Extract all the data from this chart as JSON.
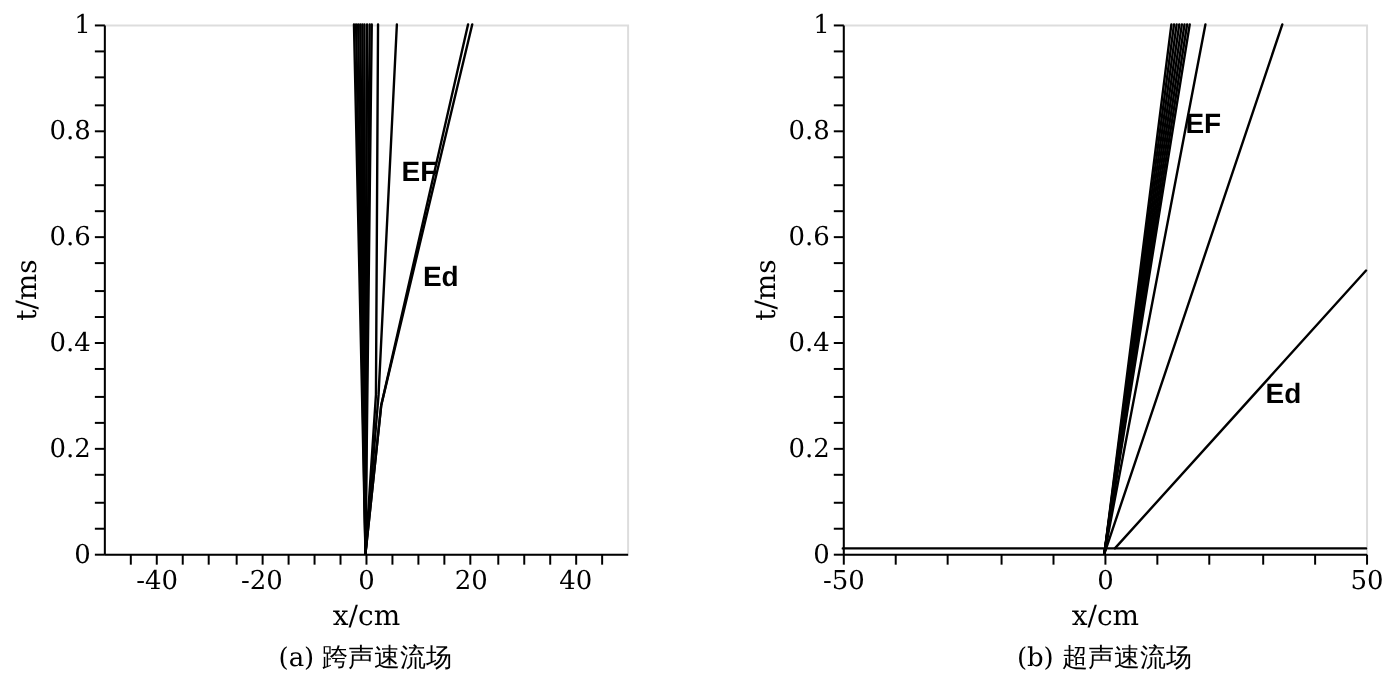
{
  "chart_data": [
    {
      "type": "line",
      "title": "(a) 跨声速流场",
      "xlabel": "x/cm",
      "ylabel": "t/ms",
      "grid": false,
      "xlim": [
        -50,
        50
      ],
      "ylim": [
        0,
        1
      ],
      "xticks": [
        {
          "value": -45,
          "label": null
        },
        -40,
        {
          "value": -35,
          "label": null
        },
        {
          "value": -30,
          "label": null
        },
        {
          "value": -25,
          "label": null
        },
        -20,
        {
          "value": -15,
          "label": null
        },
        {
          "value": -10,
          "label": null
        },
        {
          "value": -5,
          "label": null
        },
        0,
        {
          "value": 5,
          "label": null
        },
        {
          "value": 10,
          "label": null
        },
        {
          "value": 15,
          "label": null
        },
        20,
        {
          "value": 25,
          "label": null
        },
        {
          "value": 30,
          "label": null
        },
        {
          "value": 35,
          "label": null
        },
        40,
        {
          "value": 45,
          "label": null
        }
      ],
      "yticks": [
        0,
        {
          "value": 0.05,
          "label": null
        },
        {
          "value": 0.1,
          "label": null
        },
        {
          "value": 0.15,
          "label": null
        },
        0.2,
        {
          "value": 0.25,
          "label": null
        },
        {
          "value": 0.3,
          "label": null
        },
        {
          "value": 0.35,
          "label": null
        },
        0.4,
        {
          "value": 0.45,
          "label": null
        },
        {
          "value": 0.5,
          "label": null
        },
        {
          "value": 0.55,
          "label": null
        },
        0.6,
        {
          "value": 0.65,
          "label": null
        },
        {
          "value": 0.7,
          "label": null
        },
        {
          "value": 0.75,
          "label": null
        },
        0.8,
        {
          "value": 0.85,
          "label": null
        },
        {
          "value": 0.9,
          "label": null
        },
        {
          "value": 0.95,
          "label": null
        },
        1
      ],
      "series": [
        {
          "color": "#000000",
          "x": [
            0,
            -2.2
          ],
          "values": [
            0,
            1
          ]
        },
        {
          "color": "#000000",
          "x": [
            0,
            -1.8
          ],
          "values": [
            0,
            1
          ]
        },
        {
          "color": "#000000",
          "x": [
            0,
            -1.4
          ],
          "values": [
            0,
            1
          ]
        },
        {
          "color": "#000000",
          "x": [
            0,
            -1.0
          ],
          "values": [
            0,
            1
          ]
        },
        {
          "color": "#000000",
          "x": [
            0,
            -0.6
          ],
          "values": [
            0,
            1
          ]
        },
        {
          "color": "#000000",
          "x": [
            0,
            -0.2
          ],
          "values": [
            0,
            1
          ]
        },
        {
          "color": "#000000",
          "x": [
            0,
            0.3
          ],
          "values": [
            0,
            1
          ]
        },
        {
          "color": "#000000",
          "x": [
            0,
            0.8
          ],
          "values": [
            0,
            1
          ]
        },
        {
          "color": "#000000",
          "x": [
            0,
            1.2
          ],
          "values": [
            0,
            1
          ]
        },
        {
          "color": "#000000",
          "x": [
            0,
            2,
            2.4
          ],
          "values": [
            0,
            0.3,
            1
          ]
        },
        {
          "color": "#000000",
          "x": [
            0,
            2.5,
            6
          ],
          "values": [
            0,
            0.3,
            1
          ]
        },
        {
          "color": "#000000",
          "x": [
            0,
            3,
            19.6
          ],
          "values": [
            0,
            0.28,
            1
          ]
        },
        {
          "color": "#000000",
          "x": [
            0,
            3,
            20.4
          ],
          "values": [
            0,
            0.28,
            1
          ]
        }
      ],
      "annotations": [
        {
          "text": "EF",
          "x": 4.6,
          "y": 0.72
        },
        {
          "text": "Ed",
          "x": 8.7,
          "y": 0.52
        }
      ]
    },
    {
      "type": "line",
      "title": "(b) 超声速流场",
      "xlabel": "x/cm",
      "ylabel": "t/ms",
      "grid": false,
      "xlim": [
        -50,
        50
      ],
      "ylim": [
        0,
        1
      ],
      "xticks": [
        -50,
        {
          "value": -40,
          "label": null
        },
        {
          "value": -30,
          "label": null
        },
        {
          "value": -20,
          "label": null
        },
        {
          "value": -10,
          "label": null
        },
        0,
        {
          "value": 10,
          "label": null
        },
        {
          "value": 20,
          "label": null
        },
        {
          "value": 30,
          "label": null
        },
        {
          "value": 40,
          "label": null
        },
        50
      ],
      "yticks": [
        0,
        {
          "value": 0.05,
          "label": null
        },
        {
          "value": 0.1,
          "label": null
        },
        {
          "value": 0.15,
          "label": null
        },
        0.2,
        {
          "value": 0.25,
          "label": null
        },
        {
          "value": 0.3,
          "label": null
        },
        {
          "value": 0.35,
          "label": null
        },
        0.4,
        {
          "value": 0.45,
          "label": null
        },
        {
          "value": 0.5,
          "label": null
        },
        {
          "value": 0.55,
          "label": null
        },
        0.6,
        {
          "value": 0.65,
          "label": null
        },
        {
          "value": 0.7,
          "label": null
        },
        {
          "value": 0.75,
          "label": null
        },
        0.8,
        {
          "value": 0.85,
          "label": null
        },
        {
          "value": 0.9,
          "label": null
        },
        {
          "value": 0.95,
          "label": null
        },
        1
      ],
      "series": [
        {
          "color": "#000000",
          "x": [
            0,
            12.8
          ],
          "values": [
            0,
            1
          ]
        },
        {
          "color": "#000000",
          "x": [
            0,
            13.3
          ],
          "values": [
            0,
            1
          ]
        },
        {
          "color": "#000000",
          "x": [
            0,
            13.8
          ],
          "values": [
            0,
            1
          ]
        },
        {
          "color": "#000000",
          "x": [
            0,
            14.3
          ],
          "values": [
            0,
            1
          ]
        },
        {
          "color": "#000000",
          "x": [
            0,
            14.8
          ],
          "values": [
            0,
            1
          ]
        },
        {
          "color": "#000000",
          "x": [
            0,
            15.3
          ],
          "values": [
            0,
            1
          ]
        },
        {
          "color": "#000000",
          "x": [
            0,
            15.8
          ],
          "values": [
            0,
            1
          ]
        },
        {
          "color": "#000000",
          "x": [
            0,
            16.3
          ],
          "values": [
            0,
            1
          ]
        },
        {
          "color": "#000000",
          "x": [
            0,
            19.3
          ],
          "values": [
            0,
            1
          ]
        },
        {
          "color": "#000000",
          "x": [
            0,
            34
          ],
          "values": [
            0,
            1
          ]
        },
        {
          "color": "#000000",
          "x": [
            2,
            50
          ],
          "values": [
            0.01,
            0.535
          ]
        },
        {
          "color": "#000000",
          "x": [
            -50,
            50
          ],
          "values": [
            0.01,
            0.01
          ]
        }
      ],
      "annotations": [
        {
          "text": "EF",
          "x": 13.2,
          "y": 0.81
        },
        {
          "text": "Ed",
          "x": 28.5,
          "y": 0.3
        }
      ]
    }
  ]
}
